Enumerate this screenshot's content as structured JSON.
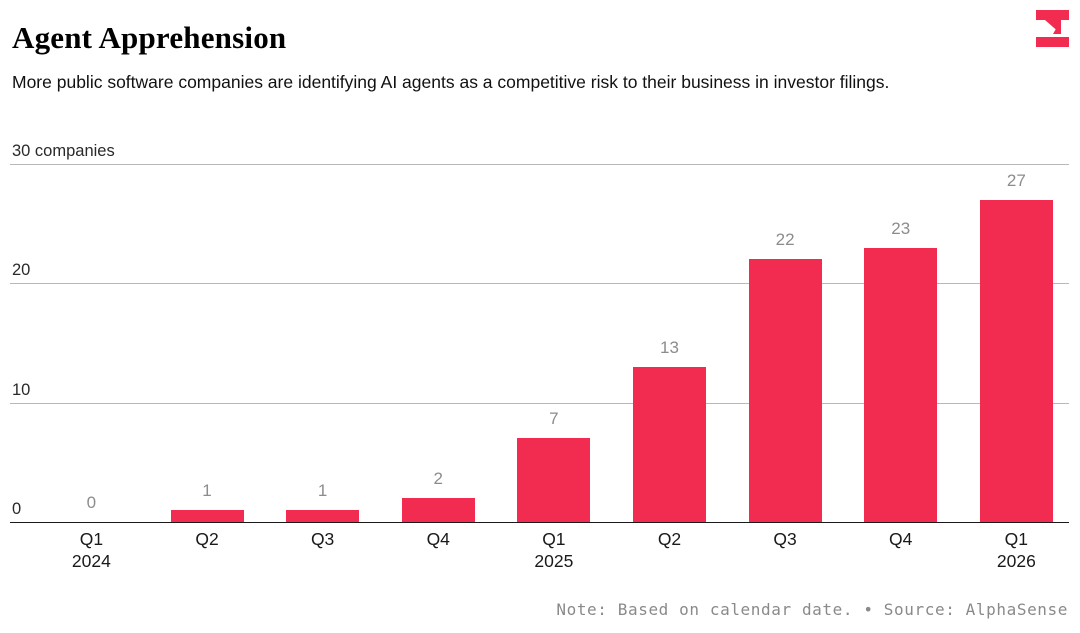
{
  "header": {
    "title": "Agent Apprehension",
    "subtitle": "More public software companies are identifying AI agents as a competitive risk to their business in investor filings."
  },
  "logo": {
    "name": "the-information-logo",
    "color": "#f22b50"
  },
  "chart_data": {
    "type": "bar",
    "categories": [
      {
        "quarter": "Q1",
        "year": "2024"
      },
      {
        "quarter": "Q2",
        "year": ""
      },
      {
        "quarter": "Q3",
        "year": ""
      },
      {
        "quarter": "Q4",
        "year": ""
      },
      {
        "quarter": "Q1",
        "year": "2025"
      },
      {
        "quarter": "Q2",
        "year": ""
      },
      {
        "quarter": "Q3",
        "year": ""
      },
      {
        "quarter": "Q4",
        "year": ""
      },
      {
        "quarter": "Q1",
        "year": "2026"
      }
    ],
    "values": [
      0,
      1,
      1,
      2,
      7,
      13,
      22,
      23,
      27
    ],
    "title": "Agent Apprehension",
    "xlabel": "",
    "ylabel": "companies",
    "ylim": [
      0,
      30
    ],
    "y_ticks": [
      0,
      10,
      20,
      30
    ],
    "y_tick_labels": [
      "0",
      "10",
      "20",
      "30 companies"
    ],
    "grid": true,
    "legend": "none",
    "bar_color": "#f22b50",
    "gridline_color": "#b8b8b8",
    "axis_color": "#1a1a1a",
    "value_label_color": "#8c8c8c"
  },
  "footer": {
    "note": "Note: Based on calendar date. • Source: AlphaSense"
  }
}
